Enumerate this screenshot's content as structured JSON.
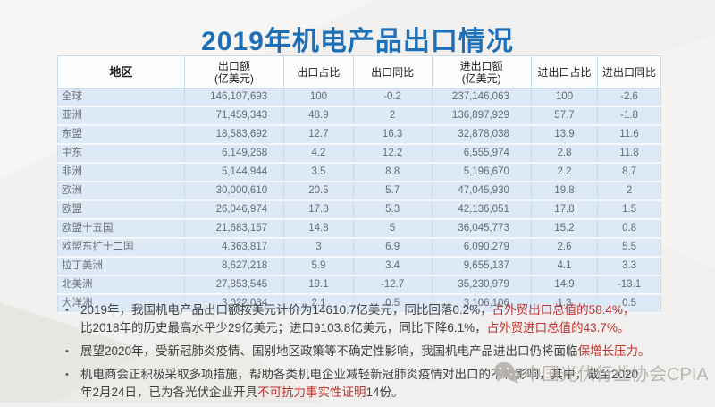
{
  "title": "2019年机电产品出口情况",
  "colors": {
    "title_blue": "#1d6fb8",
    "highlight_red": "#c0322d",
    "table_row_bg": "#dde9f5"
  },
  "table": {
    "headers": [
      {
        "line1": "地区",
        "line2": ""
      },
      {
        "line1": "出口额",
        "line2": "(亿美元)"
      },
      {
        "line1": "出口占比",
        "line2": ""
      },
      {
        "line1": "出口同比",
        "line2": ""
      },
      {
        "line1": "进出口额",
        "line2": "(亿美元)"
      },
      {
        "line1": "进出口占比",
        "line2": ""
      },
      {
        "line1": "进出口同比",
        "line2": ""
      }
    ],
    "rows": [
      {
        "region": "全球",
        "indent": 0,
        "export": "146,107,693",
        "export_share": "100",
        "export_yoy": "-0.2",
        "trade": "237,146,063",
        "trade_share": "100",
        "trade_yoy": "-2.6"
      },
      {
        "region": "亚洲",
        "indent": 0,
        "export": "71,459,343",
        "export_share": "48.9",
        "export_yoy": "2",
        "trade": "136,897,929",
        "trade_share": "57.7",
        "trade_yoy": "-1.8"
      },
      {
        "region": "东盟",
        "indent": 1,
        "export": "18,583,692",
        "export_share": "12.7",
        "export_yoy": "16.3",
        "trade": "32,878,038",
        "trade_share": "13.9",
        "trade_yoy": "11.6"
      },
      {
        "region": "中东",
        "indent": 1,
        "export": "6,149,268",
        "export_share": "4.2",
        "export_yoy": "12.2",
        "trade": "6,555,974",
        "trade_share": "2.8",
        "trade_yoy": "11.8"
      },
      {
        "region": "非洲",
        "indent": 0,
        "export": "5,144,944",
        "export_share": "3.5",
        "export_yoy": "8.8",
        "trade": "5,196,670",
        "trade_share": "2.2",
        "trade_yoy": "8.7"
      },
      {
        "region": "欧洲",
        "indent": 0,
        "export": "30,000,610",
        "export_share": "20.5",
        "export_yoy": "5.7",
        "trade": "47,045,930",
        "trade_share": "19.8",
        "trade_yoy": "2"
      },
      {
        "region": "欧盟",
        "indent": 1,
        "export": "26,046,974",
        "export_share": "17.8",
        "export_yoy": "5.3",
        "trade": "42,136,051",
        "trade_share": "17.8",
        "trade_yoy": "1.5"
      },
      {
        "region": "欧盟十五国",
        "indent": 2,
        "export": "21,683,157",
        "export_share": "14.8",
        "export_yoy": "5",
        "trade": "36,045,773",
        "trade_share": "15.2",
        "trade_yoy": "0.8"
      },
      {
        "region": "欧盟东扩十二国",
        "indent": 2,
        "export": "4,363,817",
        "export_share": "3",
        "export_yoy": "6.9",
        "trade": "6,090,279",
        "trade_share": "2.6",
        "trade_yoy": "5.5"
      },
      {
        "region": "拉丁美洲",
        "indent": 0,
        "export": "8,627,218",
        "export_share": "5.9",
        "export_yoy": "3.4",
        "trade": "9,655,137",
        "trade_share": "4.1",
        "trade_yoy": "3.3"
      },
      {
        "region": "北美洲",
        "indent": 0,
        "export": "27,853,545",
        "export_share": "19.1",
        "export_yoy": "-12.7",
        "trade": "35,230,979",
        "trade_share": "14.9",
        "trade_yoy": "-13.1"
      },
      {
        "region": "大洋洲",
        "indent": 0,
        "export": "3,022,034",
        "export_share": "2.1",
        "export_yoy": "0.5",
        "trade": "3,106,106",
        "trade_share": "1.3",
        "trade_yoy": "0.5"
      }
    ]
  },
  "bullets": [
    {
      "marker": "•",
      "segments": [
        {
          "text": "2019年，我国机电产品出口额按美元计价为14610.7亿美元，同比回落0.2%，",
          "red": false
        },
        {
          "text": "占外贸出口总值的58.4%，",
          "red": true
        },
        {
          "text": "比2018年的历史最高水平少29亿美元；进口9103.8亿美元，同比下降6.1%，",
          "red": false,
          "break_before": true
        },
        {
          "text": "占外贸进口总值的43.7%。",
          "red": true
        }
      ]
    },
    {
      "marker": "•",
      "segments": [
        {
          "text": "展望2020年，受新冠肺炎疫情、国别地区政策等不确定性影响，我国机电产品进出口仍将面临",
          "red": false
        },
        {
          "text": "保增长压力。",
          "red": true
        }
      ]
    },
    {
      "marker": "•",
      "segments": [
        {
          "text": "机电商会正积极采取多项措施，帮助各类机电企业减轻新冠肺炎疫情对出口的不利影响，其中，截至2020",
          "red": false
        },
        {
          "text": "年2月24日，已为各光伏企业开具",
          "red": false,
          "break_before": true
        },
        {
          "text": "不可抗力事实性证明",
          "red": true
        },
        {
          "text": "14份。",
          "red": false
        }
      ]
    }
  ],
  "watermark": {
    "icon": "wechat-icon",
    "text": "中国光伏行业协会CPIA"
  }
}
